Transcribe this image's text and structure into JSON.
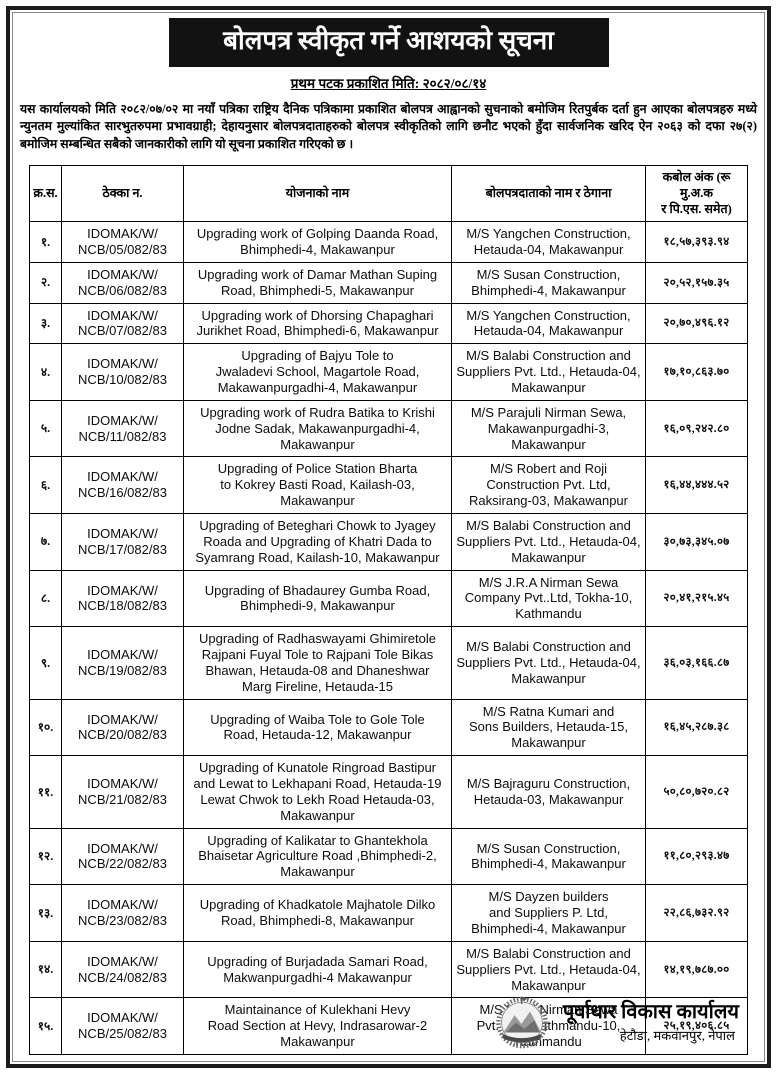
{
  "notice": {
    "title": "बोलपत्र स्वीकृत गर्ने आशयको सूचना",
    "published_line": "प्रथम पटक प्रकाशित मिति: २०८२/०८/१४",
    "intro": "यस कार्यालयको मिति २०८२/०७/०२ मा नयाँ पत्रिका राष्ट्रिय दैनिक पत्रिकामा प्रकाशित बोलपत्र आह्वानको सुचनाको बमोजिम रितपुर्बक दर्ता हुन आएका बोलपत्रहरु मध्ये न्युनतम मुल्यांकित  सारभुतरुपमा प्रभावग्राही; देहायनुसार बोलपत्रदाताहरुको बोलपत्र स्वीकृतिको लागि छनौट भएको हुँदा सार्वजनिक खरिद ऐन २०६३ को दफा २७(२) बमोजिम  सम्बन्धित सबैको जानकारीको लागि यो सूचना प्रकाशित गरिएको छ ।"
  },
  "table": {
    "headers": {
      "sn": "क्र.स.",
      "contract": "ठेक्का न.",
      "project": "योजनाको नाम",
      "bidder": "बोलपत्रदाताको नाम र ठेगाना",
      "amount": "कबोल अंक (रू मु.अ.क\nर पि.एस. समेत)"
    },
    "rows": [
      {
        "sn": "१.",
        "contract": "IDOMAK/W/\nNCB/05/082/83",
        "project": "Upgrading work of Golping Daanda Road,\nBhimphedi-4, Makawanpur",
        "bidder": "M/S Yangchen Construction,\nHetauda-04, Makawanpur",
        "amount": "१८,५७,३९३.९४"
      },
      {
        "sn": "२.",
        "contract": "IDOMAK/W/\nNCB/06/082/83",
        "project": "Upgrading work of Damar Mathan Suping\nRoad, Bhimphedi-5, Makawanpur",
        "bidder": "M/S Susan Construction,\nBhimphedi-4, Makawanpur",
        "amount": "२०,५२,१५७.३५"
      },
      {
        "sn": "३.",
        "contract": "IDOMAK/W/\nNCB/07/082/83",
        "project": "Upgrading work of Dhorsing Chapaghari\nJurikhet Road, Bhimphedi-6, Makawanpur",
        "bidder": "M/S Yangchen Construction,\nHetauda-04, Makawanpur",
        "amount": "२०,७०,४९६.१२"
      },
      {
        "sn": "४.",
        "contract": "IDOMAK/W/\nNCB/10/082/83",
        "project": "Upgrading of Bajyu Tole to\nJwaladevi School, Magartole Road,\nMakawanpurgadhi-4, Makawanpur",
        "bidder": "M/S Balabi Construction and\nSuppliers Pvt. Ltd., Hetauda-04,\nMakawanpur",
        "amount": "१७,१०,८६३.७०"
      },
      {
        "sn": "५.",
        "contract": "IDOMAK/W/\nNCB/11/082/83",
        "project": "Upgrading work of Rudra Batika to Krishi\nJodne Sadak, Makawanpurgadhi-4,\nMakawanpur",
        "bidder": "M/S Parajuli Nirman Sewa,\nMakawanpurgadhi-3,\nMakawanpur",
        "amount": "१६,०९,२४२.८०"
      },
      {
        "sn": "६.",
        "contract": "IDOMAK/W/\nNCB/16/082/83",
        "project": "Upgrading of Police Station Bharta\nto Kokrey Basti Road, Kailash-03,\nMakawanpur",
        "bidder": "M/S Robert and Roji\nConstruction Pvt. Ltd,\nRaksirang-03, Makawanpur",
        "amount": "१६,४४,४४४.५२"
      },
      {
        "sn": "७.",
        "contract": "IDOMAK/W/\nNCB/17/082/83",
        "project": "Upgrading of Beteghari Chowk to Jyagey\nRoada and Upgrading of Khatri Dada to\nSyamrang Road, Kailash-10, Makawanpur",
        "bidder": "M/S Balabi Construction and\nSuppliers Pvt. Ltd., Hetauda-04,\nMakawanpur",
        "amount": "३०,७३,३४५.०७"
      },
      {
        "sn": "८.",
        "contract": "IDOMAK/W/\nNCB/18/082/83",
        "project": "Upgrading of Bhadaurey Gumba Road,\nBhimphedi-9, Makawanpur",
        "bidder": "M/S J.R.A Nirman Sewa\nCompany Pvt..Ltd, Tokha-10,\nKathmandu",
        "amount": "२०,४१,२१५.४५"
      },
      {
        "sn": "९.",
        "contract": "IDOMAK/W/\nNCB/19/082/83",
        "project": "Upgrading of Radhaswayami Ghimiretole\nRajpani Fuyal Tole to Rajpani Tole Bikas\nBhawan, Hetauda-08 and Dhaneshwar\nMarg Fireline, Hetauda-15",
        "bidder": "M/S Balabi Construction and\nSuppliers Pvt. Ltd., Hetauda-04,\nMakawanpur",
        "amount": "३६,०३,१६६.८७"
      },
      {
        "sn": "१०.",
        "contract": "IDOMAK/W/\nNCB/20/082/83",
        "project": "Upgrading of Waiba Tole to Gole Tole\nRoad, Hetauda-12, Makawanpur",
        "bidder": "M/S Ratna Kumari and\nSons Builders, Hetauda-15,\nMakawanpur",
        "amount": "१६,४५,२८७.३८"
      },
      {
        "sn": "११.",
        "contract": "IDOMAK/W/\nNCB/21/082/83",
        "project": "Upgrading of Kunatole Ringroad Bastipur\nand Lewat to Lekhapani Road, Hetauda-19\nLewat Chwok to Lekh Road Hetauda-03,\nMakawanpur",
        "bidder": "M/S Bajraguru Construction,\nHetauda-03, Makawanpur",
        "amount": "५०,८०,७२०.८२"
      },
      {
        "sn": "१२.",
        "contract": "IDOMAK/W/\nNCB/22/082/83",
        "project": "Upgrading of Kalikatar to Ghantekhola\nBhaisetar Agriculture Road ,Bhimphedi-2,\nMakawanpur",
        "bidder": "M/S Susan Construction,\nBhimphedi-4, Makawanpur",
        "amount": "११,८०,२९३.४७"
      },
      {
        "sn": "१३.",
        "contract": "IDOMAK/W/\nNCB/23/082/83",
        "project": "Upgrading of Khadkatole Majhatole Dilko\nRoad, Bhimphedi-8, Makawanpur",
        "bidder": "M/S Dayzen builders\nand Suppliers P. Ltd,\nBhimphedi-4, Makawanpur",
        "amount": "२२,८६,७३२.९२"
      },
      {
        "sn": "१४.",
        "contract": "IDOMAK/W/\nNCB/24/082/83",
        "project": "Upgrading of Burjadada Samari Road,\nMakwanpurgadhi-4 Makawanpur",
        "bidder": "M/S Balabi Construction and\nSuppliers Pvt. Ltd., Hetauda-04,\nMakawanpur",
        "amount": "१४,१९,७८७.००"
      },
      {
        "sn": "१५.",
        "contract": "IDOMAK/W/\nNCB/25/082/83",
        "project": "Maintainance of Kulekhani Hevy\nRoad Section at Hevy, Indrasarowar-2\nMakawanpur",
        "bidder": "M/S Kunti Nirman Sewa\nPvt. Ltd., Kathmandu-10,\nKathmandu",
        "amount": "२५,१९,४०६.८५"
      }
    ]
  },
  "footer": {
    "org_name": "पूर्वाधार विकास कार्यालय",
    "org_address": "हेटौडा, मकवानपुर, नेपाल",
    "logo": "nepal-government-emblem-icon"
  },
  "colors": {
    "title_bg": "#121212",
    "title_text": "#ffffff",
    "table_border": "#000000"
  }
}
